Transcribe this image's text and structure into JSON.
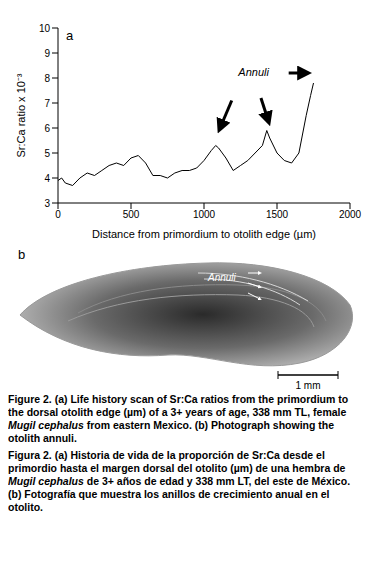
{
  "chart_data": {
    "type": "line",
    "panel_label": "a",
    "x_label": "Distance from primordium to otolith edge (µm)",
    "y_label": "Sr:Ca ratio x 10⁻³",
    "annotations": [
      "Annuli"
    ],
    "x": [
      0,
      25,
      50,
      100,
      150,
      200,
      250,
      300,
      350,
      400,
      450,
      500,
      550,
      600,
      650,
      700,
      750,
      800,
      850,
      900,
      950,
      1000,
      1050,
      1080,
      1100,
      1150,
      1200,
      1250,
      1300,
      1350,
      1400,
      1430,
      1450,
      1500,
      1550,
      1600,
      1650,
      1700,
      1730,
      1750
    ],
    "values": [
      3.9,
      4.0,
      3.8,
      3.7,
      4.0,
      4.2,
      4.1,
      4.3,
      4.5,
      4.6,
      4.5,
      4.8,
      4.9,
      4.6,
      4.1,
      4.1,
      4.0,
      4.2,
      4.3,
      4.3,
      4.4,
      4.7,
      5.1,
      5.3,
      5.2,
      4.8,
      4.3,
      4.5,
      4.7,
      5.0,
      5.3,
      5.9,
      5.6,
      5.0,
      4.7,
      4.6,
      5.0,
      6.5,
      7.3,
      7.8
    ],
    "color": "#000000",
    "xlim": [
      0,
      2000
    ],
    "xticks": [
      0,
      500,
      1000,
      1500,
      2000
    ],
    "ylim": [
      3,
      10
    ],
    "yticks": [
      3,
      4,
      5,
      6,
      7,
      8,
      9,
      10
    ]
  },
  "panel_b": {
    "panel_label": "b",
    "annotation": "Annuli",
    "scale_bar": "1 mm"
  },
  "caption": {
    "english": {
      "label": "Figure 2.",
      "before": "(a) Life history scan of Sr:Ca ratios from the primordium to the dorsal otolith edge (µm) of a 3+ years of age, 338 mm TL, female ",
      "species": "Mugil cephalus",
      "after": " from eastern Mexico. (b) Photograph showing the otolith annuli."
    },
    "spanish": {
      "label": "Figura 2.",
      "before": "(a) Historia de vida de la proporción de Sr:Ca desde el primordio hasta el margen dorsal del otolito (µm) de una hembra de ",
      "species": "Mugil cephalus",
      "after": " de 3+ años de edad y 338 mm LT, del este de México. (b) Fotografía que muestra los anillos de crecimiento anual en el otolito."
    }
  }
}
